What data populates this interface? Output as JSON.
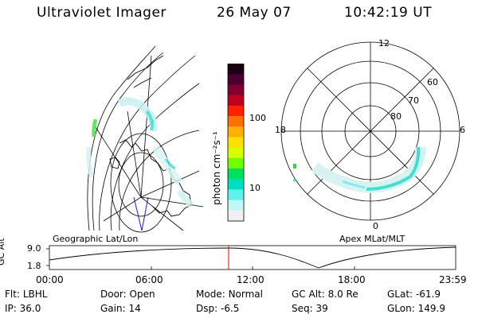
{
  "header": {
    "instrument": "Ultraviolet Imager",
    "date": "26 May 07",
    "time": "10:42:19 UT"
  },
  "colorbar": {
    "unit_label": "photon cm⁻²s⁻¹",
    "ticks": [
      "100",
      "10"
    ],
    "colors": [
      "#1a0010",
      "#4a0030",
      "#800030",
      "#c00020",
      "#ff2000",
      "#ff7000",
      "#ffb000",
      "#ffe000",
      "#d8ff00",
      "#70ff00",
      "#00e060",
      "#00e0c0",
      "#60f0f0",
      "#c0f8f8",
      "#f0f0f0"
    ]
  },
  "polar_plot": {
    "mlt_labels": [
      "12",
      "6",
      "0",
      "18"
    ],
    "mlat_labels": [
      "60",
      "70",
      "80"
    ]
  },
  "panel_labels": {
    "left": "Geographic Lat/Lon",
    "right": "Apex MLat/MLT"
  },
  "altitude_plot": {
    "ylabel": "GC Alt",
    "y_ticks": [
      "9.0",
      "1.8"
    ],
    "x_ticks": [
      "00:00",
      "06:00",
      "12:00",
      "18:00",
      "23:59"
    ],
    "current_marker_time": "10:42:19"
  },
  "footer": {
    "row1": [
      {
        "key": "Flt:",
        "value": "LBHL"
      },
      {
        "key": "Door:",
        "value": "Open"
      },
      {
        "key": "Mode:",
        "value": "Normal"
      },
      {
        "key": "GC Alt:",
        "value": "8.0 Re"
      },
      {
        "key": "GLat:",
        "value": "-61.9"
      }
    ],
    "row2": [
      {
        "key": "IP:",
        "value": "36.0"
      },
      {
        "key": "Gain:",
        "value": "14"
      },
      {
        "key": "Dsp:",
        "value": "-6.5"
      },
      {
        "key": "Seq:",
        "value": "39"
      },
      {
        "key": "GLon:",
        "value": "149.9"
      }
    ]
  }
}
